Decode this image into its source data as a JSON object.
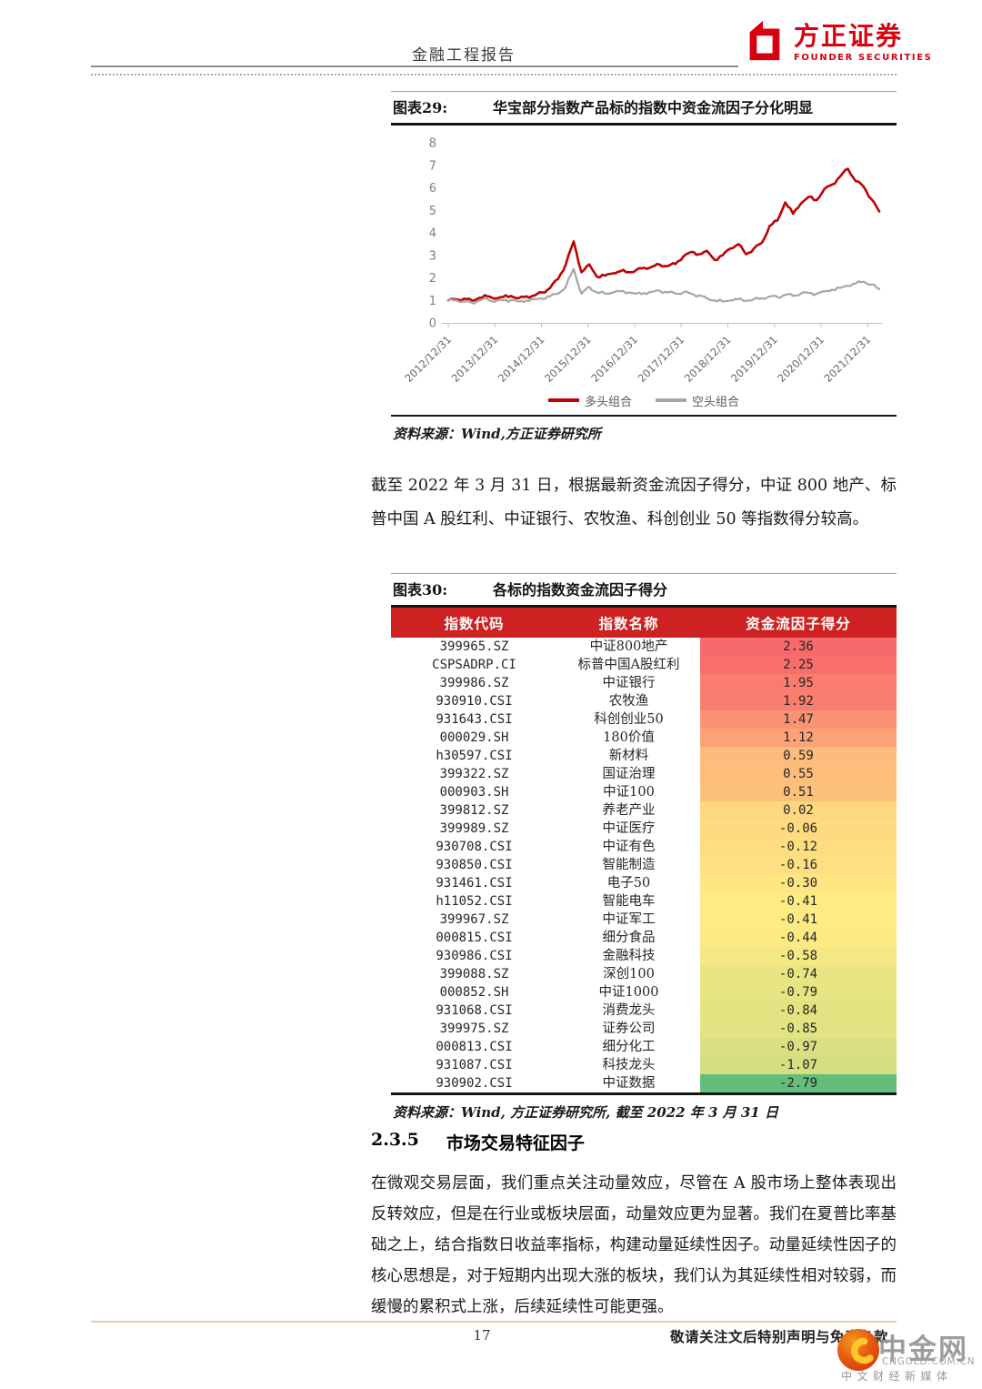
{
  "header": {
    "report_type": "金融工程报告",
    "brand": {
      "name_cn": "方正证券",
      "name_en": "FOUNDER SECURITIES",
      "color": "#d7000f"
    }
  },
  "figure29": {
    "label": "图表29:",
    "title": "华宝部分指数产品标的指数中资金流因子分化明显",
    "source": "资料来源：Wind,方正证券研究所"
  },
  "chart_data": {
    "type": "line",
    "title": "华宝部分指数产品标的指数中资金流因子分化明显",
    "ylim": [
      0,
      8
    ],
    "yticks": [
      0,
      1,
      2,
      3,
      4,
      5,
      6,
      7,
      8
    ],
    "x_tick_labels": [
      "2012/12/31",
      "2013/12/31",
      "2014/12/31",
      "2015/12/31",
      "2016/12/31",
      "2017/12/31",
      "2018/12/31",
      "2019/12/31",
      "2020/12/31",
      "2021/12/31"
    ],
    "grid": false,
    "legend_position": "bottom",
    "series": [
      {
        "name": "多头组合",
        "color": "#c00000",
        "values": [
          1.0,
          1.05,
          1.08,
          1.0,
          1.12,
          1.18,
          1.08,
          1.15,
          1.2,
          1.1,
          1.18,
          1.22,
          1.35,
          1.55,
          1.95,
          2.6,
          3.62,
          2.25,
          2.6,
          2.05,
          2.1,
          2.2,
          2.3,
          2.25,
          2.35,
          2.45,
          2.5,
          2.58,
          2.52,
          2.62,
          2.95,
          3.15,
          3.05,
          3.2,
          2.8,
          3.0,
          3.3,
          3.5,
          3.05,
          3.3,
          3.55,
          4.3,
          4.55,
          5.35,
          4.85,
          5.3,
          5.6,
          5.45,
          5.95,
          6.15,
          6.5,
          6.85,
          6.3,
          6.05,
          5.5,
          4.95
        ]
      },
      {
        "name": "空头组合",
        "color": "#a6a6a6",
        "values": [
          1.0,
          1.02,
          0.95,
          0.9,
          1.0,
          1.05,
          0.95,
          1.0,
          1.02,
          0.95,
          1.0,
          1.05,
          1.08,
          1.18,
          1.3,
          1.6,
          2.4,
          1.3,
          1.6,
          1.35,
          1.3,
          1.35,
          1.4,
          1.35,
          1.3,
          1.33,
          1.38,
          1.43,
          1.35,
          1.3,
          1.35,
          1.3,
          1.22,
          1.1,
          1.0,
          0.95,
          1.0,
          1.05,
          0.98,
          1.05,
          1.1,
          1.18,
          1.15,
          1.25,
          1.2,
          1.3,
          1.33,
          1.3,
          1.4,
          1.48,
          1.55,
          1.65,
          1.75,
          1.83,
          1.7,
          1.5
        ]
      }
    ]
  },
  "paragraphs": {
    "p1": "截至 2022 年 3 月 31 日，根据最新资金流因子得分，中证 800 地产、标普中国 A 股红利、中证银行、农牧渔、科创创业 50 等指数得分较高。",
    "p2": "在微观交易层面，我们重点关注动量效应，尽管在 A 股市场上整体表现出反转效应，但是在行业或板块层面，动量效应更为显著。我们在夏普比率基础之上，结合指数日收益率指标，构建动量延续性因子。动量延续性因子的核心思想是，对于短期内出现大涨的板块，我们认为其延续性相对较弱，而缓慢的累积式上涨，后续延续性可能更强。"
  },
  "figure30": {
    "label": "图表30:",
    "title": "各标的指数资金流因子得分",
    "header_bg": "#ce2121",
    "columns": [
      "指数代码",
      "指数名称",
      "资金流因子得分"
    ],
    "rows": [
      [
        "399965.SZ",
        "中证800地产",
        "2.36"
      ],
      [
        "CSPSADRP.CI",
        "标普中国A股红利",
        "2.25"
      ],
      [
        "399986.SZ",
        "中证银行",
        "1.95"
      ],
      [
        "930910.CSI",
        "农牧渔",
        "1.92"
      ],
      [
        "931643.CSI",
        "科创创业50",
        "1.47"
      ],
      [
        "000029.SH",
        "180价值",
        "1.12"
      ],
      [
        "h30597.CSI",
        "新材料",
        "0.59"
      ],
      [
        "399322.SZ",
        "国证治理",
        "0.55"
      ],
      [
        "000903.SH",
        "中证100",
        "0.51"
      ],
      [
        "399812.SZ",
        "养老产业",
        "0.02"
      ],
      [
        "399989.SZ",
        "中证医疗",
        "-0.06"
      ],
      [
        "930708.CSI",
        "中证有色",
        "-0.12"
      ],
      [
        "930850.CSI",
        "智能制造",
        "-0.16"
      ],
      [
        "931461.CSI",
        "电子50",
        "-0.30"
      ],
      [
        "h11052.CSI",
        "智能电车",
        "-0.41"
      ],
      [
        "399967.SZ",
        "中证军工",
        "-0.41"
      ],
      [
        "000815.CSI",
        "细分食品",
        "-0.44"
      ],
      [
        "930986.CSI",
        "金融科技",
        "-0.58"
      ],
      [
        "399088.SZ",
        "深创100",
        "-0.74"
      ],
      [
        "000852.SH",
        "中证1000",
        "-0.79"
      ],
      [
        "931068.CSI",
        "消费龙头",
        "-0.84"
      ],
      [
        "399975.SZ",
        "证券公司",
        "-0.85"
      ],
      [
        "000813.CSI",
        "细分化工",
        "-0.97"
      ],
      [
        "931087.CSI",
        "科技龙头",
        "-1.07"
      ],
      [
        "930902.CSI",
        "中证数据",
        "-2.79"
      ]
    ],
    "heatmap": {
      "min": -2.79,
      "mid": -0.41,
      "max": 2.36,
      "green": "#63be7b",
      "yellow": "#ffeb84",
      "red": "#f8696b"
    },
    "source": "资料来源：Wind, 方正证券研究所, 截至 2022 年 3 月 31 日"
  },
  "section": {
    "number": "2.3.5",
    "title": "市场交易特征因子"
  },
  "page": {
    "number": "17",
    "footer_notice": "敬请关注文后特别声明与免责条款"
  },
  "watermark": {
    "name": "中金网",
    "domain": "CNGOLD.COM.CN",
    "tagline": "中文财经新媒体"
  }
}
